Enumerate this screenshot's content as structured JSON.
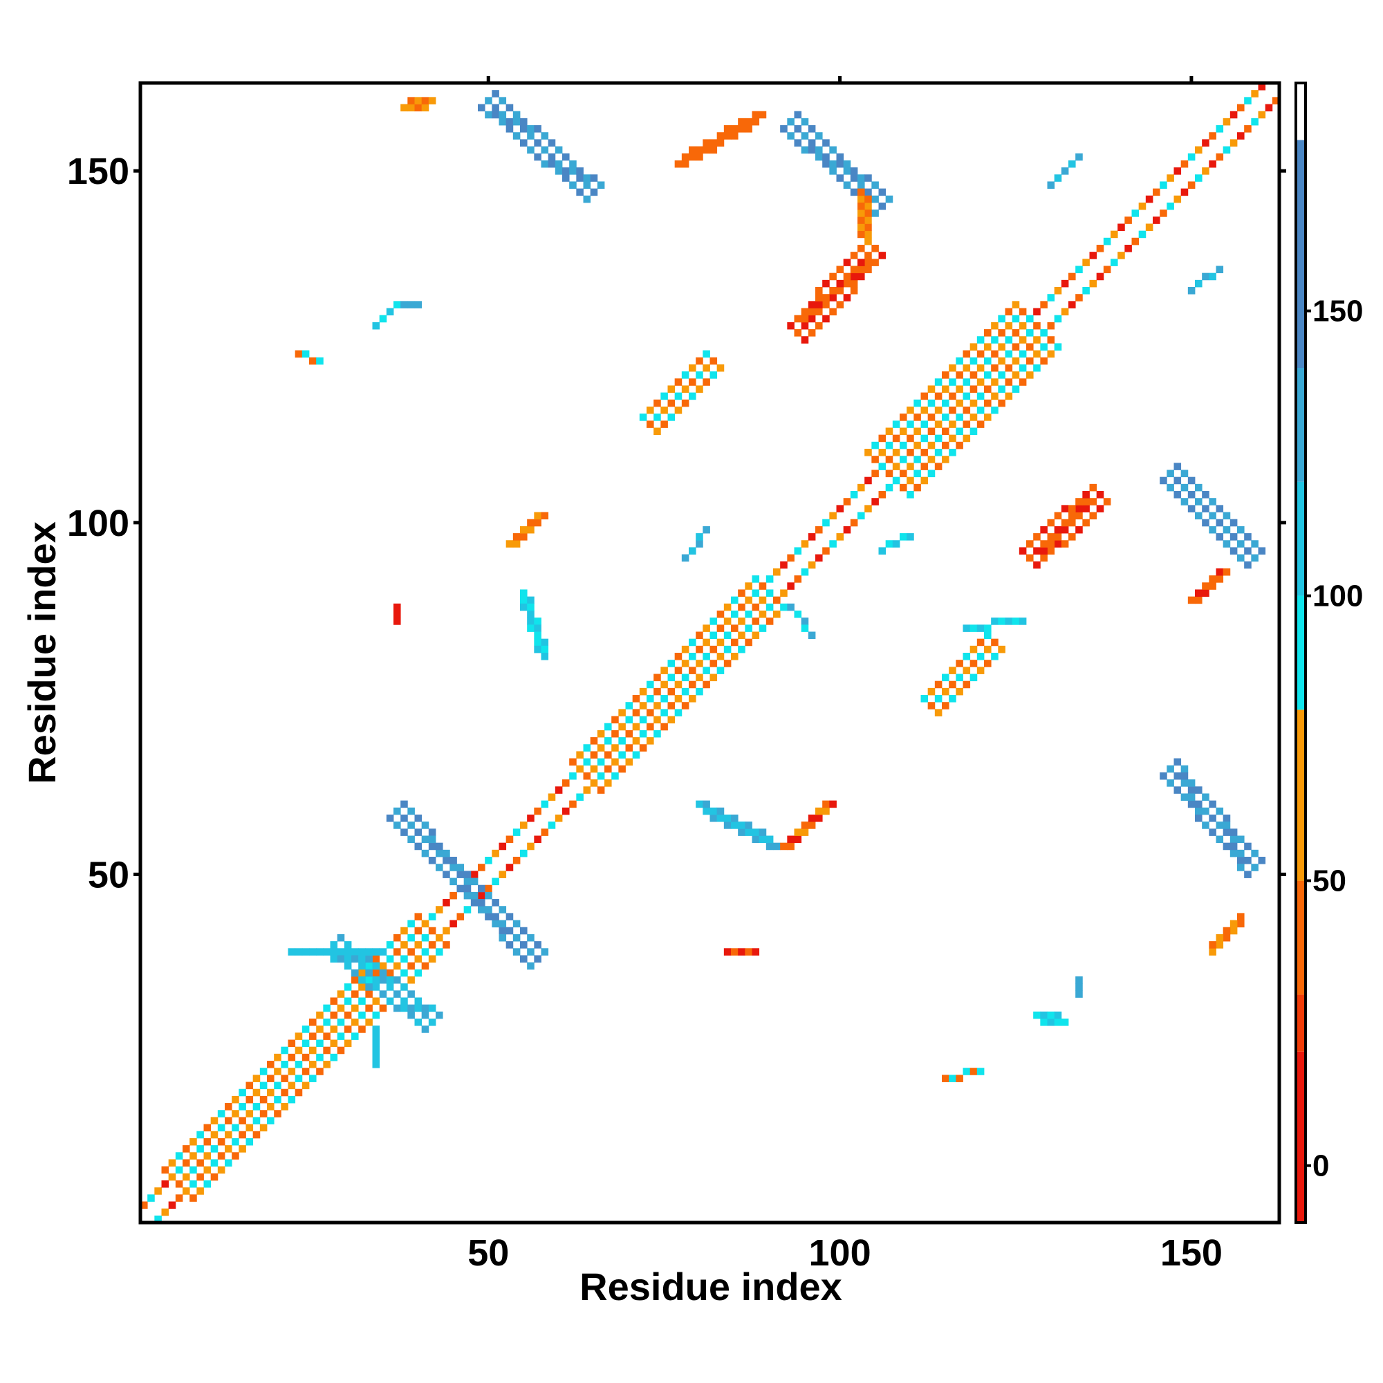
{
  "chart_data": {
    "type": "heatmap",
    "title": "",
    "xlabel": "Residue index",
    "ylabel": "Residue index",
    "xlim": [
      1,
      162
    ],
    "ylim": [
      1,
      162
    ],
    "x_ticks": [
      50,
      100,
      150
    ],
    "y_ticks": [
      50,
      100,
      150
    ],
    "grid": false,
    "symmetric": true,
    "colorbar": {
      "ticks": [
        0,
        50,
        100,
        150
      ],
      "range": [
        -10,
        190
      ],
      "bands": [
        {
          "from": -10,
          "to": 20,
          "color": "#e8180c"
        },
        {
          "from": 20,
          "to": 30,
          "color": "#f03c08"
        },
        {
          "from": 30,
          "to": 50,
          "color": "#f86808"
        },
        {
          "from": 50,
          "to": 80,
          "color": "#f89a08"
        },
        {
          "from": 80,
          "to": 100,
          "color": "#10e4ec"
        },
        {
          "from": 100,
          "to": 120,
          "color": "#22c4e2"
        },
        {
          "from": 120,
          "to": 140,
          "color": "#3aa8d4"
        },
        {
          "from": 140,
          "to": 180,
          "color": "#4a86c4"
        },
        {
          "from": 180,
          "to": 190,
          "color": "#ffffff"
        }
      ]
    },
    "value_colors": {
      "red": "#e8180c",
      "red_orange": "#f03c08",
      "orange": "#f86808",
      "amber": "#f89a08",
      "cyan": "#10e4ec",
      "sky": "#22c4e2",
      "light_blue": "#3aa8d4",
      "steel_blue": "#4a86c4"
    },
    "segments": [
      {
        "from": [
          1,
          1
        ],
        "to": [
          162,
          162
        ],
        "width": 5,
        "stripe": true,
        "values": [
          10,
          40,
          90,
          60
        ]
      },
      {
        "from": [
          6,
          6
        ],
        "to": [
          42,
          42
        ],
        "width": 8,
        "values": [
          90,
          40,
          60
        ]
      },
      {
        "from": [
          64,
          64
        ],
        "to": [
          90,
          90
        ],
        "width": 8,
        "values": [
          90,
          40,
          60
        ]
      },
      {
        "from": [
          107,
          107
        ],
        "to": [
          128,
          128
        ],
        "width": 9,
        "values": [
          90,
          40,
          60
        ]
      },
      {
        "from": [
          28,
          40
        ],
        "to": [
          42,
          29
        ],
        "width": 3,
        "values": [
          130,
          100
        ]
      },
      {
        "from": [
          37,
          59
        ],
        "to": [
          57,
          38
        ],
        "width": 3,
        "values": [
          150,
          120
        ]
      },
      {
        "from": [
          50,
          160
        ],
        "to": [
          65,
          147
        ],
        "width": 3,
        "values": [
          150,
          130
        ]
      },
      {
        "from": [
          93,
          157
        ],
        "to": [
          106,
          145
        ],
        "width": 3,
        "values": [
          150,
          130
        ]
      },
      {
        "from": [
          147,
          65
        ],
        "to": [
          159,
          51
        ],
        "width": 3,
        "values": [
          150,
          130
        ]
      },
      {
        "from": [
          147,
          107
        ],
        "to": [
          159,
          95
        ],
        "width": 3,
        "values": [
          150,
          130
        ]
      },
      {
        "from": [
          94,
          127
        ],
        "to": [
          105,
          139
        ],
        "width": 4,
        "values": [
          10,
          30,
          40
        ]
      },
      {
        "from": [
          127,
          95
        ],
        "to": [
          137,
          104
        ],
        "width": 4,
        "values": [
          10,
          30,
          40
        ]
      },
      {
        "from": [
          73,
          114
        ],
        "to": [
          82,
          123
        ],
        "width": 3,
        "values": [
          60,
          40,
          90
        ]
      },
      {
        "from": [
          113,
          74
        ],
        "to": [
          122,
          83
        ],
        "width": 3,
        "values": [
          60,
          40,
          90
        ]
      },
      {
        "from": [
          77,
          151
        ],
        "to": [
          89,
          158
        ],
        "width": 2,
        "values": [
          40,
          30
        ]
      },
      {
        "from": [
          104,
          140
        ],
        "to": [
          103,
          147
        ],
        "width": 2,
        "values": [
          40,
          60
        ]
      },
      {
        "from": [
          38,
          159
        ],
        "to": [
          42,
          160
        ],
        "width": 2,
        "values": [
          40,
          60
        ]
      },
      {
        "from": [
          53,
          97
        ],
        "to": [
          58,
          101
        ],
        "width": 2,
        "values": [
          40,
          60
        ]
      },
      {
        "from": [
          55,
          90
        ],
        "to": [
          58,
          81
        ],
        "width": 2,
        "values": [
          110,
          90
        ]
      },
      {
        "from": [
          80,
          60
        ],
        "to": [
          91,
          54
        ],
        "width": 2,
        "values": [
          130,
          100
        ]
      },
      {
        "from": [
          92,
          54
        ],
        "to": [
          99,
          60
        ],
        "width": 2,
        "values": [
          60,
          30,
          10
        ]
      },
      {
        "from": [
          150,
          89
        ],
        "to": [
          155,
          93
        ],
        "width": 2,
        "values": [
          40,
          30,
          10
        ]
      },
      {
        "from": [
          153,
          39
        ],
        "to": [
          157,
          44
        ],
        "width": 2,
        "values": [
          40,
          60
        ]
      },
      {
        "from": [
          128,
          30
        ],
        "to": [
          132,
          29
        ],
        "width": 2,
        "values": [
          100,
          90
        ]
      },
      {
        "from": [
          115,
          21
        ],
        "to": [
          120,
          22
        ],
        "width": 1,
        "values": [
          40,
          90
        ]
      },
      {
        "from": [
          23,
          124
        ],
        "to": [
          26,
          123
        ],
        "width": 1,
        "values": [
          40,
          90
        ]
      },
      {
        "from": [
          22,
          39
        ],
        "to": [
          35,
          39
        ],
        "width": 1,
        "values": [
          100
        ]
      },
      {
        "from": [
          84,
          39
        ],
        "to": [
          88,
          39
        ],
        "width": 1,
        "values": [
          10,
          30
        ]
      },
      {
        "from": [
          134,
          33
        ],
        "to": [
          134,
          35
        ],
        "width": 1,
        "values": [
          130
        ]
      },
      {
        "from": [
          34,
          23
        ],
        "to": [
          34,
          28
        ],
        "width": 1,
        "values": [
          100
        ]
      },
      {
        "from": [
          37,
          86
        ],
        "to": [
          37,
          88
        ],
        "width": 1,
        "values": [
          10
        ]
      },
      {
        "from": [
          34,
          128
        ],
        "to": [
          37,
          131
        ],
        "width": 1,
        "values": [
          100,
          90
        ]
      },
      {
        "from": [
          130,
          148
        ],
        "to": [
          134,
          152
        ],
        "width": 1,
        "values": [
          120,
          100
        ]
      },
      {
        "from": [
          150,
          133
        ],
        "to": [
          154,
          136
        ],
        "width": 1,
        "values": [
          120,
          100
        ]
      },
      {
        "from": [
          78,
          95
        ],
        "to": [
          81,
          99
        ],
        "width": 1,
        "values": [
          120,
          100
        ]
      },
      {
        "from": [
          93,
          88
        ],
        "to": [
          96,
          84
        ],
        "width": 1,
        "values": [
          120,
          90
        ]
      },
      {
        "from": [
          38,
          131
        ],
        "to": [
          40,
          131
        ],
        "width": 1,
        "values": [
          130
        ]
      },
      {
        "from": [
          106,
          96
        ],
        "to": [
          110,
          98
        ],
        "width": 1,
        "values": [
          100,
          90
        ]
      },
      {
        "from": [
          118,
          85
        ],
        "to": [
          126,
          86
        ],
        "width": 1,
        "values": [
          100,
          90
        ]
      }
    ]
  }
}
